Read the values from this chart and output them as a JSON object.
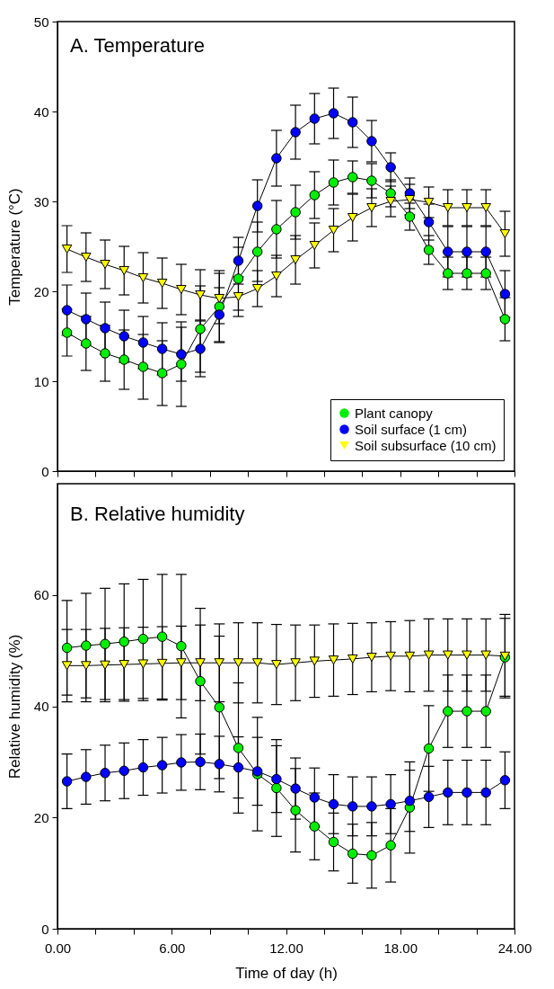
{
  "chart_data": [
    {
      "type": "line",
      "title": "A. Temperature",
      "ylabel": "Temperature (°C)",
      "x": [
        0.5,
        1.5,
        2.5,
        3.5,
        4.5,
        5.5,
        6.5,
        7.5,
        8.5,
        9.5,
        10.5,
        11.5,
        12.5,
        13.5,
        14.5,
        15.5,
        16.5,
        17.5,
        18.5,
        19.5,
        20.5,
        21.5,
        22.5,
        23.5
      ],
      "xlim": [
        0,
        24
      ],
      "xticks": [
        {
          "value": 0,
          "label": null
        },
        {
          "value": 2,
          "label": null
        },
        {
          "value": 4,
          "label": null
        },
        {
          "value": 6,
          "label": null
        },
        {
          "value": 8,
          "label": null
        },
        {
          "value": 10,
          "label": null
        },
        {
          "value": 12,
          "label": null
        },
        {
          "value": 14,
          "label": null
        },
        {
          "value": 16,
          "label": null
        },
        {
          "value": 18,
          "label": null
        },
        {
          "value": 20,
          "label": null
        },
        {
          "value": 22,
          "label": null
        },
        {
          "value": 24,
          "label": null
        }
      ],
      "ylim": [
        0,
        50
      ],
      "yticks": [
        0,
        10,
        20,
        30,
        40,
        50
      ],
      "tick_labels": "y",
      "legend": "bottom right",
      "line_style": "solid",
      "series": [
        {
          "name": "Plant canopy",
          "color": "#00ee00",
          "marker": "circle",
          "values": [
            15.4,
            14.2,
            13.1,
            12.4,
            11.6,
            10.9,
            11.9,
            15.8,
            18.3,
            21.4,
            24.4,
            26.9,
            28.8,
            30.7,
            32.1,
            32.7,
            32.3,
            30.9,
            28.3,
            24.6,
            22.0,
            22.0,
            22.0,
            16.9
          ],
          "errors": [
            2.6,
            3.0,
            3.1,
            3.3,
            3.6,
            3.6,
            4.7,
            4.8,
            4.0,
            3.5,
            3.3,
            3.2,
            3.0,
            2.6,
            2.5,
            1.8,
            1.9,
            1.5,
            1.5,
            1.6,
            1.8,
            1.8,
            1.8,
            2.4
          ]
        },
        {
          "name": "Soil surface (1 cm)",
          "color": "#0000ff",
          "marker": "circle",
          "values": [
            17.9,
            16.9,
            15.9,
            15.0,
            14.3,
            13.6,
            13.0,
            13.6,
            17.4,
            23.4,
            29.5,
            34.8,
            37.7,
            39.2,
            39.8,
            38.8,
            36.7,
            33.8,
            30.9,
            27.7,
            24.4,
            24.4,
            24.4,
            19.7
          ],
          "errors": [
            2.8,
            2.9,
            2.9,
            2.9,
            2.9,
            2.9,
            3.0,
            3.1,
            3.0,
            2.6,
            2.9,
            3.1,
            3.0,
            2.8,
            2.8,
            2.8,
            2.3,
            1.6,
            1.7,
            2.0,
            2.8,
            2.8,
            2.8,
            2.6
          ]
        },
        {
          "name": "Soil subsurface (10 cm)",
          "color": "#ffff00",
          "marker": "triangle",
          "values": [
            24.7,
            23.8,
            23.0,
            22.3,
            21.5,
            20.9,
            20.2,
            19.6,
            19.2,
            19.4,
            20.3,
            21.7,
            23.5,
            25.1,
            26.8,
            28.2,
            29.3,
            30.0,
            30.2,
            29.9,
            29.3,
            29.3,
            29.3,
            26.4
          ],
          "errors": [
            2.6,
            2.7,
            2.7,
            2.7,
            2.8,
            2.8,
            2.8,
            2.8,
            2.8,
            2.2,
            2.0,
            2.3,
            2.7,
            2.5,
            2.4,
            2.6,
            2.1,
            1.7,
            1.7,
            1.7,
            2.0,
            2.0,
            2.0,
            2.5
          ]
        }
      ]
    },
    {
      "type": "line",
      "title": "B. Relative humidity",
      "xlabel": "Time of day (h)",
      "ylabel": "Relative humidity (%)",
      "x": [
        0.5,
        1.5,
        2.5,
        3.5,
        4.5,
        5.5,
        6.5,
        7.5,
        8.5,
        9.5,
        10.5,
        11.5,
        12.5,
        13.5,
        14.5,
        15.5,
        16.5,
        17.5,
        18.5,
        19.5,
        20.5,
        21.5,
        22.5,
        23.5
      ],
      "xlim": [
        0,
        24
      ],
      "xticks": [
        {
          "value": 0,
          "label": "0.00"
        },
        {
          "value": 2,
          "label": null
        },
        {
          "value": 4,
          "label": null
        },
        {
          "value": 6,
          "label": "6.00"
        },
        {
          "value": 8,
          "label": null
        },
        {
          "value": 10,
          "label": null
        },
        {
          "value": 12,
          "label": "12.00"
        },
        {
          "value": 14,
          "label": null
        },
        {
          "value": 16,
          "label": null
        },
        {
          "value": 18,
          "label": "18.00"
        },
        {
          "value": 20,
          "label": null
        },
        {
          "value": 22,
          "label": null
        },
        {
          "value": 24,
          "label": "24.00"
        }
      ],
      "ylim": [
        0,
        80
      ],
      "yticks": [
        0,
        20,
        40,
        60
      ],
      "line_style": "solid",
      "series": [
        {
          "color": "#00ee00",
          "marker": "circle",
          "values": [
            50.5,
            50.9,
            51.2,
            51.6,
            52.1,
            52.5,
            50.8,
            44.5,
            39.8,
            32.5,
            27.8,
            25.3,
            21.3,
            18.4,
            15.6,
            13.5,
            13.2,
            15.0,
            21.8,
            32.4,
            39.1,
            39.1,
            39.1,
            48.8
          ],
          "errors": [
            8.5,
            9.4,
            10.0,
            10.4,
            10.7,
            11.2,
            12.9,
            13.1,
            12.8,
            11.7,
            10.2,
            8.7,
            7.5,
            6.0,
            5.2,
            5.3,
            5.9,
            6.6,
            8.2,
            7.7,
            6.5,
            6.5,
            6.5,
            7.0
          ]
        },
        {
          "color": "#0000ff",
          "marker": "circle",
          "values": [
            26.5,
            27.3,
            28.0,
            28.4,
            29.0,
            29.4,
            29.9,
            30.0,
            29.6,
            29.0,
            28.3,
            26.9,
            25.2,
            23.6,
            22.4,
            22.0,
            22.0,
            22.4,
            23.0,
            23.7,
            24.5,
            24.5,
            24.5,
            26.7
          ],
          "errors": [
            4.9,
            4.9,
            5.0,
            5.0,
            5.0,
            5.0,
            5.0,
            5.0,
            5.0,
            5.5,
            6.1,
            6.0,
            5.5,
            5.3,
            5.3,
            5.3,
            5.3,
            5.3,
            5.5,
            5.5,
            5.8,
            5.8,
            5.8,
            5.1
          ]
        },
        {
          "color": "#ffff00",
          "marker": "triangle",
          "values": [
            47.3,
            47.3,
            47.4,
            47.5,
            47.6,
            47.7,
            47.8,
            47.8,
            47.8,
            47.8,
            47.8,
            47.5,
            47.8,
            48.1,
            48.3,
            48.5,
            48.8,
            49.0,
            49.0,
            49.2,
            49.2,
            49.2,
            49.2,
            49.0
          ],
          "errors": [
            6.5,
            6.5,
            6.6,
            6.6,
            6.6,
            6.6,
            6.6,
            6.8,
            7.0,
            7.2,
            7.2,
            7.2,
            6.8,
            6.5,
            6.5,
            6.4,
            6.2,
            6.2,
            6.4,
            6.5,
            6.5,
            6.5,
            6.5,
            7.5
          ]
        }
      ]
    }
  ]
}
